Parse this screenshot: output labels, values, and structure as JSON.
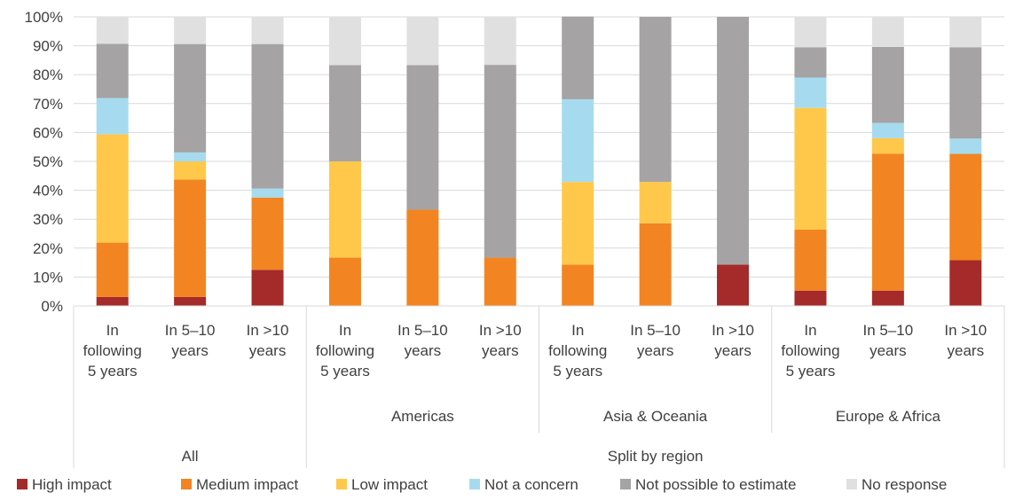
{
  "chart_data": {
    "type": "bar",
    "stacked": true,
    "ylim": [
      0,
      100
    ],
    "yticks": [
      "0%",
      "10%",
      "20%",
      "30%",
      "40%",
      "50%",
      "60%",
      "70%",
      "80%",
      "90%",
      "100%"
    ],
    "categories": [
      [
        "In",
        "following",
        "5 years"
      ],
      [
        "In 5–10",
        "years"
      ],
      [
        "In >10",
        "years"
      ],
      [
        "In",
        "following",
        "5 years"
      ],
      [
        "In 5–10",
        "years"
      ],
      [
        "In >10",
        "years"
      ],
      [
        "In",
        "following",
        "5 years"
      ],
      [
        "In 5–10",
        "years"
      ],
      [
        "In >10",
        "years"
      ],
      [
        "In",
        "following",
        "5 years"
      ],
      [
        "In 5–10",
        "years"
      ],
      [
        "In >10",
        "years"
      ]
    ],
    "groups": [
      {
        "label": "All",
        "start": 0,
        "end": 2
      },
      {
        "label": "Americas",
        "start": 3,
        "end": 5
      },
      {
        "label": "Asia & Oceania",
        "start": 6,
        "end": 8
      },
      {
        "label": "Europe & Africa",
        "start": 9,
        "end": 11
      }
    ],
    "supergroups": [
      {
        "label": "All",
        "start": 0,
        "end": 2
      },
      {
        "label": "Split by region",
        "start": 3,
        "end": 11
      }
    ],
    "series": [
      {
        "name": "High impact",
        "color": "#a52a2a",
        "values": [
          3.1,
          3.1,
          12.5,
          0,
          0,
          0,
          0,
          0,
          14.3,
          5.3,
          5.3,
          15.8
        ]
      },
      {
        "name": "Medium impact",
        "color": "#f28522",
        "values": [
          18.8,
          40.6,
          25.0,
          16.7,
          33.3,
          16.7,
          14.3,
          28.6,
          0,
          21.1,
          47.4,
          36.8
        ]
      },
      {
        "name": "Low impact",
        "color": "#ffc84a",
        "values": [
          37.5,
          6.3,
          0,
          33.3,
          0,
          0,
          28.6,
          14.3,
          0,
          42.1,
          5.3,
          0
        ]
      },
      {
        "name": "Not a concern",
        "color": "#a6dbef",
        "values": [
          12.5,
          3.1,
          3.1,
          0,
          0,
          0,
          28.6,
          0,
          0,
          10.5,
          5.3,
          5.3
        ]
      },
      {
        "name": "Not possible to estimate",
        "color": "#a5a3a4",
        "values": [
          18.8,
          37.5,
          50.0,
          33.3,
          50.0,
          66.7,
          28.6,
          57.1,
          85.7,
          10.5,
          26.3,
          31.6
        ]
      },
      {
        "name": "No response",
        "color": "#e1e0e1",
        "values": [
          9.4,
          9.4,
          9.4,
          16.7,
          16.7,
          16.7,
          0,
          0,
          0,
          10.5,
          10.5,
          10.5
        ]
      }
    ],
    "grid": true,
    "legend_position": "bottom"
  }
}
